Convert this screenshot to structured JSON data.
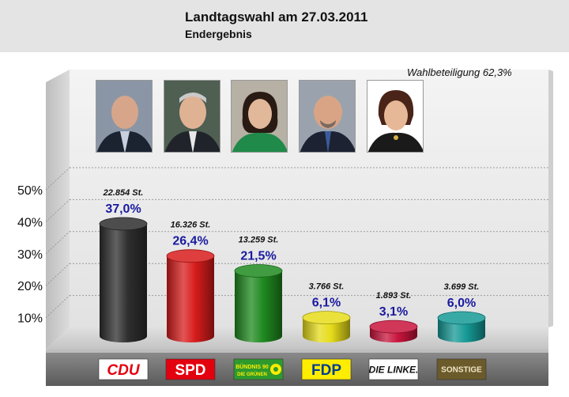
{
  "header": {
    "title": "Landtagswahl am 27.03.2011",
    "subtitle": "Endergebnis"
  },
  "turnout_label": "Wahlbeteiligung 62,3%",
  "chart_data": {
    "type": "bar",
    "title": "Landtagswahl am 27.03.2011",
    "subtitle": "Endergebnis",
    "ylim": [
      0,
      50
    ],
    "yticks": [
      "10%",
      "20%",
      "30%",
      "40%",
      "50%"
    ],
    "grid": true,
    "categories": [
      "CDU",
      "SPD",
      "BÜNDNIS 90 DIE GRÜNEN",
      "FDP",
      "DIE LINKE.",
      "SONSTIGE"
    ],
    "values": [
      37.0,
      26.4,
      21.5,
      6.1,
      3.1,
      6.0
    ],
    "value_labels": [
      "37,0%",
      "26,4%",
      "21,5%",
      "6,1%",
      "3,1%",
      "6,0%"
    ],
    "votes_labels": [
      "22.854 St.",
      "16.326 St.",
      "13.259 St.",
      "3.766 St.",
      "1.893 St.",
      "3.699 St."
    ],
    "bar_colors": [
      "#2e2e2e",
      "#d81c1c",
      "#1f8a1f",
      "#e6dc1a",
      "#c8143c",
      "#169a96"
    ],
    "parties": [
      {
        "logo_text": "CDU",
        "logo_bg": "#ffffff",
        "logo_fg": "#e3000f"
      },
      {
        "logo_text": "SPD",
        "logo_bg": "#e3000f",
        "logo_fg": "#ffffff"
      },
      {
        "logo_text": "BÜNDNIS 90",
        "logo_text2": "DIE GRÜNEN",
        "logo_bg": "#2e9a2e",
        "logo_fg": "#ffec00"
      },
      {
        "logo_text": "FDP",
        "logo_bg": "#ffed00",
        "logo_fg": "#003d8f"
      },
      {
        "logo_text": "DIE LINKE.",
        "logo_bg": "#ffffff",
        "logo_fg": "#111111"
      },
      {
        "logo_text": "SONSTIGE",
        "logo_bg": "#6b5a2a",
        "logo_fg": "#f0e6c8"
      }
    ],
    "label_value_color": "#1a1aa0"
  }
}
